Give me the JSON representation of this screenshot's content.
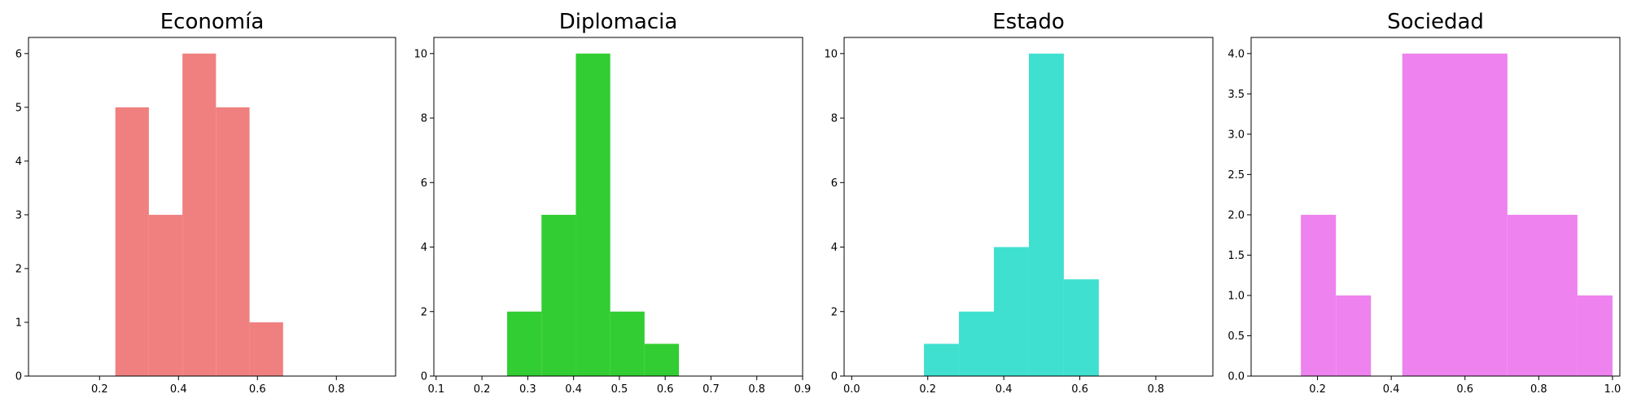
{
  "chart_data": [
    {
      "type": "bar",
      "title": "Economía",
      "color": "#f08080",
      "xlim": [
        0.02,
        0.95
      ],
      "ylim": [
        0,
        6.3
      ],
      "xticks": [
        0.2,
        0.4,
        0.6,
        0.8
      ],
      "xtick_labels": [
        "0.2",
        "0.4",
        "0.6",
        "0.8"
      ],
      "yticks": [
        0,
        1,
        2,
        3,
        4,
        5,
        6
      ],
      "ytick_labels": [
        "0",
        "1",
        "2",
        "3",
        "4",
        "5",
        "6"
      ],
      "bins": [
        {
          "x0": 0.24,
          "x1": 0.325,
          "value": 5
        },
        {
          "x0": 0.325,
          "x1": 0.41,
          "value": 3
        },
        {
          "x0": 0.41,
          "x1": 0.495,
          "value": 6
        },
        {
          "x0": 0.495,
          "x1": 0.58,
          "value": 5
        },
        {
          "x0": 0.58,
          "x1": 0.665,
          "value": 1
        }
      ]
    },
    {
      "type": "bar",
      "title": "Diplomacia",
      "color": "#32cd32",
      "xlim": [
        0.095,
        0.9
      ],
      "ylim": [
        0,
        10.5
      ],
      "xticks": [
        0.1,
        0.2,
        0.3,
        0.4,
        0.5,
        0.6,
        0.7,
        0.8,
        0.9
      ],
      "xtick_labels": [
        "0.1",
        "0.2",
        "0.3",
        "0.4",
        "0.5",
        "0.6",
        "0.7",
        "0.8",
        "0.9"
      ],
      "yticks": [
        0,
        2,
        4,
        6,
        8,
        10
      ],
      "ytick_labels": [
        "0",
        "2",
        "4",
        "6",
        "8",
        "10"
      ],
      "bins": [
        {
          "x0": 0.255,
          "x1": 0.33,
          "value": 2
        },
        {
          "x0": 0.33,
          "x1": 0.405,
          "value": 5
        },
        {
          "x0": 0.405,
          "x1": 0.48,
          "value": 10
        },
        {
          "x0": 0.48,
          "x1": 0.555,
          "value": 2
        },
        {
          "x0": 0.555,
          "x1": 0.63,
          "value": 1
        }
      ]
    },
    {
      "type": "bar",
      "title": "Estado",
      "color": "#40e0d0",
      "xlim": [
        -0.02,
        0.95
      ],
      "ylim": [
        0,
        10.5
      ],
      "xticks": [
        0.0,
        0.2,
        0.4,
        0.6,
        0.8
      ],
      "xtick_labels": [
        "0.0",
        "0.2",
        "0.4",
        "0.6",
        "0.8"
      ],
      "yticks": [
        0,
        2,
        4,
        6,
        8,
        10
      ],
      "ytick_labels": [
        "0",
        "2",
        "4",
        "6",
        "8",
        "10"
      ],
      "bins": [
        {
          "x0": 0.19,
          "x1": 0.282,
          "value": 1
        },
        {
          "x0": 0.282,
          "x1": 0.374,
          "value": 2
        },
        {
          "x0": 0.374,
          "x1": 0.466,
          "value": 4
        },
        {
          "x0": 0.466,
          "x1": 0.558,
          "value": 10
        },
        {
          "x0": 0.558,
          "x1": 0.65,
          "value": 3
        }
      ]
    },
    {
      "type": "bar",
      "title": "Sociedad",
      "color": "#ee82ee",
      "xlim": [
        0.02,
        1.02
      ],
      "ylim": [
        0,
        4.2
      ],
      "xticks": [
        0.2,
        0.4,
        0.6,
        0.8,
        1.0
      ],
      "xtick_labels": [
        "0.2",
        "0.4",
        "0.6",
        "0.8",
        "1.0"
      ],
      "yticks": [
        0,
        0.5,
        1.0,
        1.5,
        2.0,
        2.5,
        3.0,
        3.5,
        4.0
      ],
      "ytick_labels": [
        "0.0",
        "0.5",
        "1.0",
        "1.5",
        "2.0",
        "2.5",
        "3.0",
        "3.5",
        "4.0"
      ],
      "bins": [
        {
          "x0": 0.155,
          "x1": 0.25,
          "value": 2
        },
        {
          "x0": 0.25,
          "x1": 0.345,
          "value": 1
        },
        {
          "x0": 0.345,
          "x1": 0.43,
          "value": 0
        },
        {
          "x0": 0.43,
          "x1": 0.715,
          "value": 4
        },
        {
          "x0": 0.715,
          "x1": 0.905,
          "value": 2
        },
        {
          "x0": 0.905,
          "x1": 1.0,
          "value": 1
        }
      ]
    }
  ]
}
